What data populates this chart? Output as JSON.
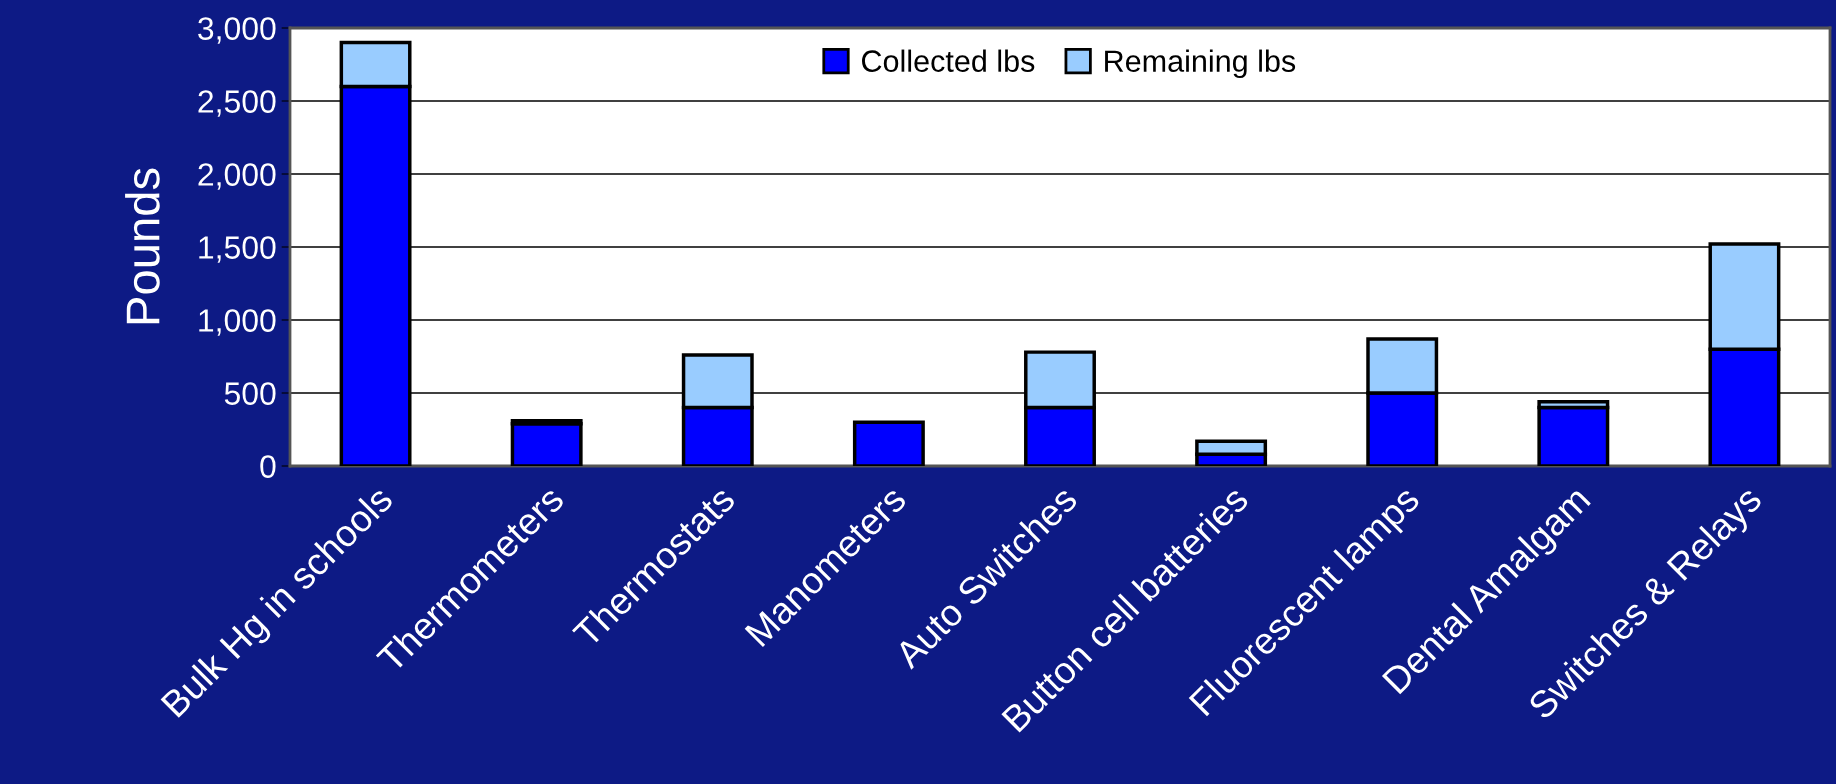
{
  "chart_data": {
    "type": "bar",
    "stacked": true,
    "ylabel": "Pounds",
    "categories": [
      "Bulk Hg in schools",
      "Thermometers",
      "Thermostats",
      "Manometers",
      "Auto Switches",
      "Button cell batteries",
      "Fluorescent lamps",
      "Dental Amalgam",
      "Switches & Relays"
    ],
    "series": [
      {
        "name": "Collected lbs",
        "color": "#0000ff",
        "values": [
          2600,
          290,
          400,
          300,
          400,
          80,
          500,
          400,
          800
        ]
      },
      {
        "name": "Remaining lbs",
        "color": "#99ccff",
        "values": [
          300,
          20,
          360,
          null,
          380,
          90,
          370,
          40,
          720
        ]
      }
    ],
    "ylim": [
      0,
      3000
    ],
    "yticks": [
      {
        "value": 0,
        "label": "0"
      },
      {
        "value": 500,
        "label": "500"
      },
      {
        "value": 1000,
        "label": "1,000"
      },
      {
        "value": 1500,
        "label": "1,500"
      },
      {
        "value": 2000,
        "label": "2,000"
      },
      {
        "value": 2500,
        "label": "2,500"
      },
      {
        "value": 3000,
        "label": "3,000"
      }
    ],
    "grid": "y",
    "legend": "top"
  }
}
